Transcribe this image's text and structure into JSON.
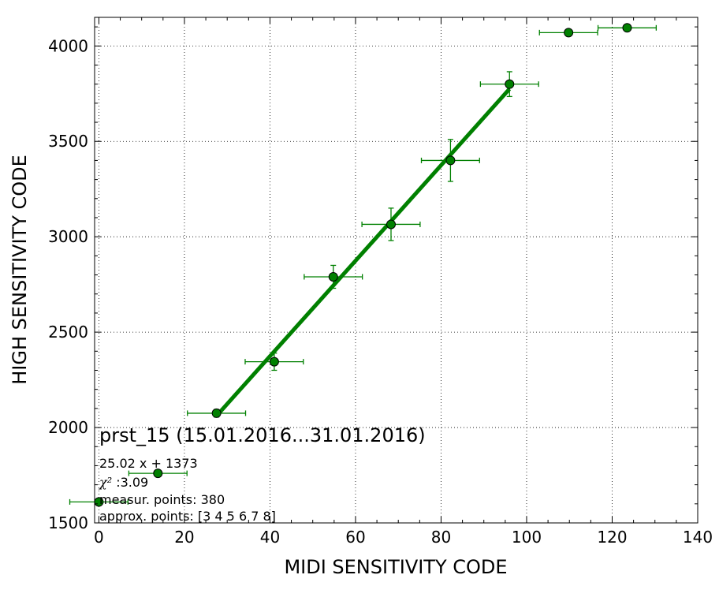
{
  "chart_data": {
    "type": "scatter",
    "title": "",
    "xlabel": "MIDI SENSITIVITY CODE",
    "ylabel": "HIGH SENSITIVITY CODE",
    "xlim": [
      -1,
      140
    ],
    "ylim": [
      1500,
      4150
    ],
    "xticks": [
      0,
      20,
      40,
      60,
      80,
      100,
      120,
      140
    ],
    "yticks": [
      1500,
      2000,
      2500,
      3000,
      3500,
      4000
    ],
    "xtick_labels": [
      "0",
      "20",
      "40",
      "60",
      "80",
      "100",
      "120",
      "140"
    ],
    "ytick_labels": [
      "1500",
      "2000",
      "2500",
      "3000",
      "3500",
      "4000"
    ],
    "grid": true,
    "series": [
      {
        "kind": "points_with_errorbars",
        "color": "#008000",
        "points": [
          {
            "x": 0,
            "y": 1610,
            "xerr": 6.8,
            "yerr": 0
          },
          {
            "x": 13.8,
            "y": 1760,
            "xerr": 6.8,
            "yerr": 0
          },
          {
            "x": 27.5,
            "y": 2075,
            "xerr": 6.8,
            "yerr": 20
          },
          {
            "x": 41,
            "y": 2345,
            "xerr": 6.8,
            "yerr": 45
          },
          {
            "x": 54.8,
            "y": 2790,
            "xerr": 6.8,
            "yerr": 60
          },
          {
            "x": 68.3,
            "y": 3065,
            "xerr": 6.8,
            "yerr": 85
          },
          {
            "x": 82.2,
            "y": 3400,
            "xerr": 6.8,
            "yerr": 110
          },
          {
            "x": 96,
            "y": 3800,
            "xerr": 6.8,
            "yerr": 65
          },
          {
            "x": 109.8,
            "y": 4070,
            "xerr": 6.8,
            "yerr": 0
          },
          {
            "x": 123.5,
            "y": 4095,
            "xerr": 6.8,
            "yerr": 0
          }
        ]
      },
      {
        "kind": "fit_line",
        "color": "#008000",
        "slope": 25.02,
        "intercept": 1373,
        "x_range": [
          27.5,
          96
        ]
      }
    ],
    "annotations": {
      "title": "prst_15 (15.01.2016...31.01.2016)",
      "fit": "25.02 x + 1373",
      "chi2_symbol": "χ²",
      "chi2_value": " :3.09",
      "measur_points": "measur. points: 380",
      "approx_points": "approx. points: [3 4 5 6 7 8]"
    }
  }
}
